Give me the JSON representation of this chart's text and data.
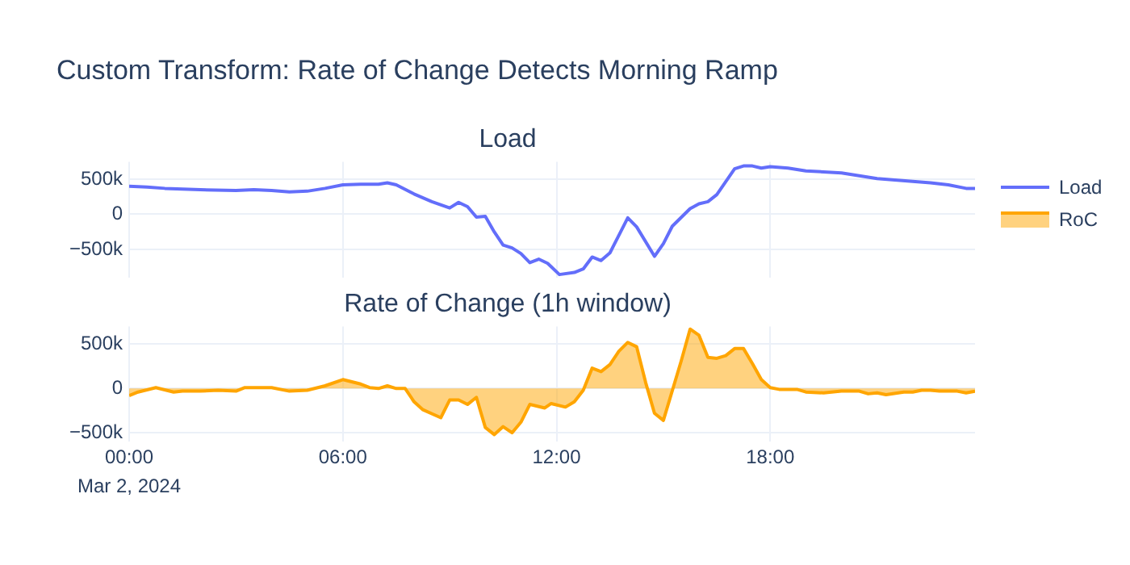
{
  "chart_data": [
    {
      "type": "line",
      "title": "Custom Transform: Rate of Change Detects Morning Ramp",
      "subtitle": "Load",
      "legend": "top right",
      "grid": true,
      "tick_labels": "y",
      "xlim": [
        0,
        23.75
      ],
      "xticks": [
        {
          "value": 0,
          "label": null
        },
        {
          "value": 6,
          "label": null
        },
        {
          "value": 12,
          "label": null
        },
        {
          "value": 18,
          "label": null
        }
      ],
      "ylim": [
        -900000,
        750000
      ],
      "yticks": [
        {
          "value": -500000,
          "label": "−500k"
        },
        {
          "value": 0,
          "label": "0"
        },
        {
          "value": 500000,
          "label": "500k"
        }
      ],
      "series": [
        {
          "name": "Load",
          "color": "#636efa",
          "x": [
            0,
            0.5,
            1,
            1.5,
            2,
            3,
            3.5,
            4,
            4.5,
            5,
            5.5,
            6,
            6.5,
            7,
            7.25,
            7.5,
            8,
            8.5,
            9,
            9.25,
            9.5,
            9.75,
            10,
            10.25,
            10.5,
            10.75,
            11,
            11.25,
            11.5,
            11.75,
            12.08,
            12.5,
            12.75,
            13,
            13.25,
            13.5,
            14,
            14.25,
            14.75,
            15,
            15.25,
            15.75,
            16,
            16.25,
            16.5,
            17,
            17.25,
            17.5,
            17.75,
            18,
            18.5,
            19,
            20,
            20.5,
            21,
            21.5,
            22,
            22.5,
            23,
            23.5,
            23.75
          ],
          "values": [
            400000,
            390000,
            370000,
            360000,
            350000,
            340000,
            350000,
            340000,
            320000,
            330000,
            370000,
            420000,
            430000,
            430000,
            450000,
            420000,
            290000,
            180000,
            90000,
            170000,
            110000,
            -40000,
            -30000,
            -250000,
            -440000,
            -480000,
            -560000,
            -690000,
            -640000,
            -700000,
            -860000,
            -830000,
            -780000,
            -610000,
            -660000,
            -550000,
            -50000,
            -180000,
            -600000,
            -420000,
            -170000,
            80000,
            150000,
            180000,
            280000,
            650000,
            690000,
            690000,
            660000,
            680000,
            660000,
            620000,
            590000,
            550000,
            510000,
            490000,
            470000,
            450000,
            420000,
            370000,
            370000
          ]
        }
      ]
    },
    {
      "type": "area",
      "title": "Rate of Change (1h window)",
      "legend": "top right",
      "grid": true,
      "xlim": [
        0,
        23.75
      ],
      "xticks": [
        {
          "value": 0,
          "label": "00:00"
        },
        {
          "value": 6,
          "label": "06:00"
        },
        {
          "value": 12,
          "label": "12:00"
        },
        {
          "value": 18,
          "label": "18:00"
        }
      ],
      "ylim": [
        -600000,
        700000
      ],
      "yticks": [
        {
          "value": -500000,
          "label": "−500k"
        },
        {
          "value": 0,
          "label": "0"
        },
        {
          "value": 500000,
          "label": "500k"
        }
      ],
      "annotations": [
        "Mar 2, 2024"
      ],
      "series": [
        {
          "name": "RoC",
          "color": "#ffa500",
          "x": [
            0,
            0.25,
            0.75,
            1.25,
            1.5,
            2,
            2.5,
            3,
            3.25,
            4,
            4.5,
            5,
            5.5,
            6,
            6.5,
            6.75,
            7,
            7.25,
            7.5,
            7.75,
            8,
            8.25,
            8.75,
            9,
            9.25,
            9.5,
            9.75,
            10,
            10.25,
            10.5,
            10.75,
            11,
            11.25,
            11.67,
            11.85,
            12.25,
            12.5,
            12.75,
            13,
            13.25,
            13.5,
            13.75,
            14,
            14.25,
            14.5,
            14.75,
            15,
            15.5,
            15.75,
            16,
            16.25,
            16.5,
            16.75,
            17,
            17.25,
            17.5,
            17.75,
            18,
            18.25,
            18.75,
            19,
            19.5,
            20,
            20.5,
            20.75,
            21,
            21.25,
            21.75,
            22,
            22.25,
            22.5,
            22.75,
            23.25,
            23.5,
            23.75
          ],
          "values": [
            -80000,
            -40000,
            10000,
            -40000,
            -30000,
            -30000,
            -20000,
            -30000,
            10000,
            10000,
            -30000,
            -20000,
            30000,
            100000,
            50000,
            10000,
            0,
            30000,
            0,
            0,
            -150000,
            -240000,
            -330000,
            -130000,
            -130000,
            -180000,
            -100000,
            -440000,
            -520000,
            -430000,
            -500000,
            -380000,
            -180000,
            -220000,
            -170000,
            -210000,
            -150000,
            -20000,
            230000,
            190000,
            270000,
            420000,
            520000,
            470000,
            70000,
            -280000,
            -360000,
            310000,
            670000,
            600000,
            350000,
            340000,
            370000,
            450000,
            450000,
            280000,
            100000,
            10000,
            -10000,
            -10000,
            -40000,
            -50000,
            -30000,
            -30000,
            -60000,
            -50000,
            -70000,
            -40000,
            -40000,
            -20000,
            -20000,
            -30000,
            -30000,
            -50000,
            -30000
          ]
        }
      ]
    }
  ]
}
